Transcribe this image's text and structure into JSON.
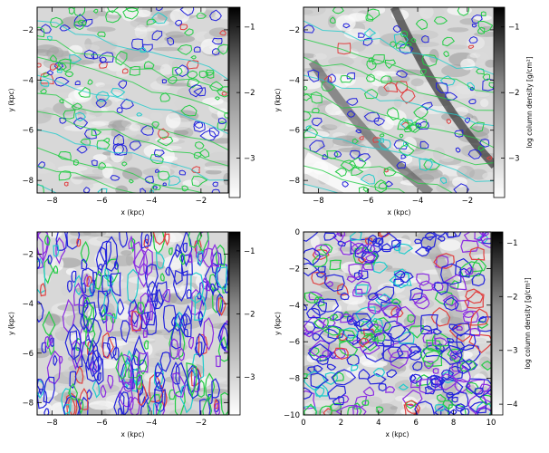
{
  "figure": {
    "colorbar_label": "log column density [g/cm$^2$]",
    "colorbar_label_display": "log column density [g/cm²]"
  },
  "chart_data": [
    {
      "type": "heatmap",
      "xlabel": "x (kpc)",
      "ylabel": "y (kpc)",
      "xlim": [
        -8.6,
        -0.9
      ],
      "ylim": [
        -8.5,
        -1.1
      ],
      "xticks": [
        -8,
        -6,
        -4,
        -2
      ],
      "yticks": [
        -8,
        -6,
        -4,
        -2
      ],
      "colorbar": {
        "ticks": [
          -3,
          -2,
          -1
        ],
        "range": [
          -3.6,
          -0.7
        ],
        "colormap": "grey (white=low, black=high)",
        "label": ""
      },
      "contour_colors": [
        "#2222dd",
        "#8a2be2",
        "#22cc44",
        "#22cccc",
        "#e04040"
      ]
    },
    {
      "type": "heatmap",
      "xlabel": "x (kpc)",
      "ylabel": "y (kpc)",
      "xlim": [
        -8.6,
        -0.9
      ],
      "ylim": [
        -8.5,
        -1.1
      ],
      "xticks": [
        -8,
        -6,
        -4,
        -2
      ],
      "yticks": [
        -8,
        -6,
        -4,
        -2
      ],
      "colorbar": {
        "ticks": [
          -3,
          -2,
          -1
        ],
        "range": [
          -3.6,
          -0.7
        ],
        "colormap": "grey (white=low, black=high)",
        "label": "log column density [g/cm²]"
      },
      "contour_colors": [
        "#2222dd",
        "#8a2be2",
        "#22cc44",
        "#22cccc",
        "#e04040"
      ]
    },
    {
      "type": "heatmap",
      "xlabel": "x (kpc)",
      "ylabel": "y (kpc)",
      "xlim": [
        -8.6,
        -0.9
      ],
      "ylim": [
        -8.5,
        -1.1
      ],
      "xticks": [
        -8,
        -6,
        -4,
        -2
      ],
      "yticks": [
        -8,
        -6,
        -4,
        -2
      ],
      "colorbar": {
        "ticks": [
          -3,
          -2,
          -1
        ],
        "range": [
          -3.6,
          -0.7
        ],
        "colormap": "grey (white=low, black=high)",
        "label": ""
      },
      "contour_colors": [
        "#2222dd",
        "#8a2be2",
        "#22cc44",
        "#22cccc",
        "#e04040"
      ]
    },
    {
      "type": "heatmap",
      "xlabel": "x (kpc)",
      "ylabel": "y (kpc)",
      "xlim": [
        0,
        10
      ],
      "ylim": [
        -10,
        0
      ],
      "xticks": [
        0,
        2,
        4,
        6,
        8,
        10
      ],
      "yticks": [
        -10,
        -8,
        -6,
        -4,
        -2,
        0
      ],
      "colorbar": {
        "ticks": [
          -4,
          -3,
          -2,
          -1
        ],
        "range": [
          -4.2,
          -0.8
        ],
        "colormap": "grey (white=low, black=high)",
        "label": "log column density [g/cm²]"
      },
      "contour_colors": [
        "#2222dd",
        "#8a2be2",
        "#22cc44",
        "#22cccc",
        "#e04040"
      ]
    }
  ]
}
